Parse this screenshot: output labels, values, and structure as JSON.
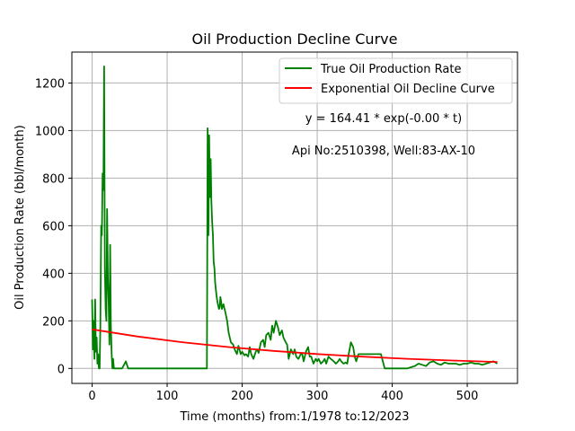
{
  "chart_data": {
    "type": "line",
    "title": "Oil Production Decline Curve",
    "xlabel": "Time (months) from:1/1978 to:12/2023",
    "ylabel": "Oil Production Rate (bbl/month)",
    "xlim": [
      -27,
      567
    ],
    "ylim": [
      -63,
      1330
    ],
    "xticks": [
      0,
      100,
      200,
      300,
      400,
      500
    ],
    "yticks": [
      0,
      200,
      400,
      600,
      800,
      1000,
      1200
    ],
    "grid": true,
    "legend_position": "top-right",
    "annotations": [
      {
        "text": "y = 164.41 * exp(-0.00 * t)"
      },
      {
        "text": "Api No:2510398, Well:83-AX-10"
      }
    ],
    "series": [
      {
        "name": "True Oil Production Rate",
        "color": "#008000",
        "x": [
          0,
          1,
          2,
          3,
          4,
          5,
          6,
          7,
          8,
          9,
          10,
          11,
          12,
          13,
          14,
          15,
          16,
          17,
          18,
          19,
          20,
          21,
          22,
          23,
          24,
          25,
          26,
          27,
          28,
          29,
          30,
          31,
          32,
          33,
          34,
          35,
          36,
          37,
          38,
          39,
          40,
          45,
          48,
          49,
          50,
          60,
          100,
          153,
          154,
          155,
          156,
          157,
          158,
          159,
          160,
          161,
          162,
          163,
          164,
          165,
          166,
          167,
          168,
          169,
          170,
          171,
          172,
          173,
          175,
          178,
          180,
          182,
          185,
          188,
          190,
          193,
          195,
          198,
          200,
          203,
          205,
          208,
          210,
          212,
          215,
          218,
          220,
          222,
          225,
          228,
          230,
          232,
          235,
          238,
          240,
          242,
          245,
          248,
          250,
          253,
          255,
          258,
          260,
          262,
          265,
          268,
          270,
          272,
          275,
          278,
          280,
          282,
          285,
          288,
          290,
          292,
          295,
          298,
          300,
          302,
          305,
          308,
          310,
          312,
          315,
          318,
          320,
          322,
          325,
          328,
          330,
          332,
          335,
          338,
          340,
          342,
          345,
          348,
          350,
          352,
          355,
          358,
          360,
          362,
          365,
          368,
          370,
          375,
          380,
          385,
          390,
          391,
          400,
          410,
          420,
          425,
          430,
          435,
          440,
          445,
          450,
          455,
          460,
          465,
          470,
          475,
          480,
          485,
          490,
          495,
          500,
          505,
          510,
          515,
          520,
          525,
          530,
          535,
          540
        ],
        "y": [
          290,
          80,
          200,
          40,
          290,
          70,
          130,
          20,
          60,
          0,
          0,
          180,
          600,
          560,
          820,
          750,
          1270,
          420,
          250,
          200,
          670,
          380,
          280,
          100,
          520,
          180,
          60,
          0,
          40,
          0,
          0,
          0,
          0,
          0,
          0,
          0,
          0,
          0,
          0,
          0,
          0,
          30,
          0,
          0,
          0,
          0,
          0,
          0,
          1010,
          560,
          980,
          720,
          880,
          700,
          620,
          560,
          450,
          420,
          360,
          330,
          300,
          280,
          265,
          250,
          255,
          300,
          280,
          250,
          270,
          230,
          200,
          150,
          110,
          100,
          80,
          60,
          95,
          60,
          70,
          55,
          60,
          50,
          90,
          60,
          40,
          70,
          80,
          65,
          110,
          120,
          90,
          140,
          150,
          120,
          180,
          150,
          200,
          170,
          140,
          160,
          130,
          110,
          100,
          40,
          80,
          60,
          80,
          50,
          40,
          60,
          60,
          30,
          70,
          90,
          50,
          50,
          20,
          40,
          30,
          40,
          20,
          30,
          40,
          20,
          50,
          40,
          35,
          30,
          20,
          30,
          40,
          30,
          20,
          25,
          20,
          60,
          110,
          90,
          50,
          30,
          60,
          60,
          60,
          60,
          60,
          60,
          60,
          60,
          60,
          60,
          0,
          0,
          0,
          0,
          0,
          5,
          10,
          20,
          15,
          10,
          25,
          30,
          20,
          15,
          25,
          20,
          20,
          20,
          15,
          20,
          20,
          25,
          20,
          20,
          15,
          20,
          25,
          30,
          20
        ]
      },
      {
        "name": "Exponential Oil Decline Curve",
        "color": "#ff0000",
        "x": [
          0,
          60,
          120,
          180,
          240,
          300,
          360,
          420,
          480,
          540
        ],
        "y": [
          164.41,
          134.6,
          110.2,
          90.2,
          73.9,
          60.5,
          49.5,
          40.5,
          33.2,
          27.2
        ]
      }
    ]
  }
}
